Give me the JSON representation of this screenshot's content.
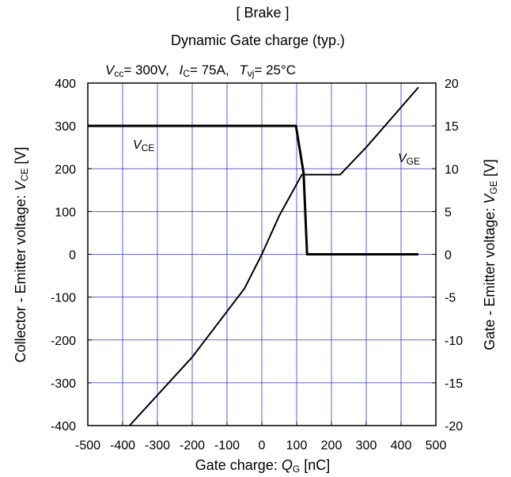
{
  "title_line1": "[ Brake ]",
  "title_line2": "Dynamic Gate charge  (typ.)",
  "conditions": {
    "vcc_sym": "V",
    "vcc_sub": "cc",
    "vcc_val": "= 300V,",
    "ic_sym": "I",
    "ic_sub": "C",
    "ic_val": "= 75A,",
    "tvj_sym": "T",
    "tvj_sub": "vj",
    "tvj_val": "= 25°C"
  },
  "axis_text": {
    "xlabel_pre": "Gate charge: ",
    "xlabel_sym": "Q",
    "xlabel_sub": "G",
    "xlabel_post": " [nC]",
    "ylabel_pre": "Collector - Emitter voltage: ",
    "ylabel_sym": "V",
    "ylabel_sub": "CE",
    "ylabel_post": " [V]",
    "y2label_pre": "Gate - Emitter voltage: ",
    "y2label_sym": "V",
    "y2label_sub": "GE",
    "y2label_post": " [V]"
  },
  "series_labels": {
    "vce_sym": "V",
    "vce_sub": "CE",
    "vge_sym": "V",
    "vge_sub": "GE"
  },
  "chart_data": {
    "type": "line",
    "xlim": [
      -500,
      500
    ],
    "ylim": [
      -400,
      400
    ],
    "y2lim": [
      -20,
      20
    ],
    "x_ticks": [
      -500,
      -400,
      -300,
      -200,
      -100,
      0,
      100,
      200,
      300,
      400,
      500
    ],
    "y_ticks": [
      -400,
      -300,
      -200,
      -100,
      0,
      100,
      200,
      300,
      400
    ],
    "y2_ticks": [
      -20,
      -15,
      -10,
      -5,
      0,
      5,
      10,
      15,
      20
    ],
    "grid": true,
    "grid_color": "#3333cc",
    "line_color": "#000000",
    "series": [
      {
        "axis": "left",
        "points": [
          [
            -500,
            300
          ],
          [
            98,
            300
          ],
          [
            120,
            190
          ],
          [
            130,
            0
          ],
          [
            450,
            0
          ]
        ]
      },
      {
        "axis": "right",
        "points": [
          [
            -380,
            -20
          ],
          [
            -200,
            -12
          ],
          [
            -50,
            -4
          ],
          [
            0,
            0
          ],
          [
            50,
            4.5
          ],
          [
            115,
            9.3
          ],
          [
            225,
            9.3
          ],
          [
            300,
            12.5
          ],
          [
            450,
            19.5
          ]
        ]
      }
    ]
  }
}
